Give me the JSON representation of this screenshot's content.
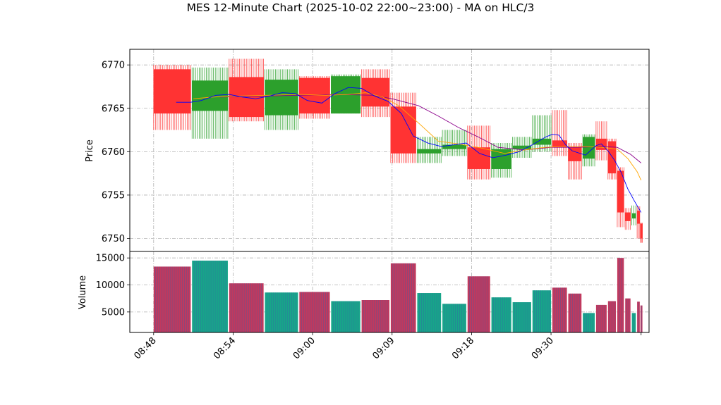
{
  "chart_data": {
    "type": "candlestick-volume",
    "title": "MES 12-Minute Chart (2025-10-02 22:00~23:00) - MA on HLC/3",
    "price_panel": {
      "ylabel": "Price",
      "ylim": [
        6748.5,
        6771.8
      ],
      "yticks": [
        6750,
        6755,
        6760,
        6765,
        6770
      ]
    },
    "volume_panel": {
      "ylabel": "Volume",
      "ylim": [
        1200,
        16200
      ],
      "yticks": [
        5000,
        10000,
        15000
      ]
    },
    "x_ticks": [
      {
        "label": "08:48",
        "x": 0
      },
      {
        "label": "08:54",
        "x": 6
      },
      {
        "label": "09:00",
        "x": 12
      },
      {
        "label": "09:09",
        "x": 18
      },
      {
        "label": "09:18",
        "x": 24
      },
      {
        "label": "09:30",
        "x": 30
      }
    ],
    "xlim": [
      -1.8,
      37.4
    ],
    "grid": true,
    "colors": {
      "up": "#2ca02c",
      "down": "#ff3333",
      "vol_up": "#17a589",
      "vol_down": "#c0395e",
      "ma_fast": "#0000ff",
      "ma_mid": "#ffa500",
      "ma_slow": "#8b008b"
    },
    "bars": [
      {
        "x0": 0.0,
        "x1": 2.8,
        "open": 6769.5,
        "close": 6764.4,
        "high": 6770.0,
        "low": 6762.5,
        "volume": 13400
      },
      {
        "x0": 2.9,
        "x1": 5.6,
        "open": 6764.7,
        "close": 6768.2,
        "high": 6769.7,
        "low": 6761.5,
        "volume": 14500
      },
      {
        "x0": 5.7,
        "x1": 8.3,
        "open": 6768.6,
        "close": 6764.0,
        "high": 6770.7,
        "low": 6763.5,
        "volume": 10300
      },
      {
        "x0": 8.4,
        "x1": 10.9,
        "open": 6764.2,
        "close": 6768.3,
        "high": 6769.5,
        "low": 6762.5,
        "volume": 8600
      },
      {
        "x0": 11.0,
        "x1": 13.3,
        "open": 6768.5,
        "close": 6764.4,
        "high": 6768.7,
        "low": 6763.8,
        "volume": 8700
      },
      {
        "x0": 13.4,
        "x1": 15.6,
        "open": 6764.4,
        "close": 6768.7,
        "high": 6768.9,
        "low": 6764.4,
        "volume": 7000
      },
      {
        "x0": 15.7,
        "x1": 17.8,
        "open": 6768.5,
        "close": 6765.2,
        "high": 6769.5,
        "low": 6764.0,
        "volume": 7200
      },
      {
        "x0": 17.9,
        "x1": 19.8,
        "open": 6765.2,
        "close": 6759.8,
        "high": 6766.8,
        "low": 6758.7,
        "volume": 14000
      },
      {
        "x0": 19.9,
        "x1": 21.7,
        "open": 6759.8,
        "close": 6760.3,
        "high": 6761.7,
        "low": 6758.7,
        "volume": 8500
      },
      {
        "x0": 21.8,
        "x1": 23.6,
        "open": 6760.3,
        "close": 6760.8,
        "high": 6762.5,
        "low": 6759.5,
        "volume": 6500
      },
      {
        "x0": 23.7,
        "x1": 25.4,
        "open": 6760.5,
        "close": 6758.0,
        "high": 6763.0,
        "low": 6756.8,
        "volume": 11600
      },
      {
        "x0": 25.5,
        "x1": 27.0,
        "open": 6758.0,
        "close": 6760.3,
        "high": 6761.0,
        "low": 6757.0,
        "volume": 7700
      },
      {
        "x0": 27.1,
        "x1": 28.5,
        "open": 6760.3,
        "close": 6760.7,
        "high": 6761.7,
        "low": 6759.3,
        "volume": 6800
      },
      {
        "x0": 28.6,
        "x1": 30.0,
        "open": 6760.8,
        "close": 6761.5,
        "high": 6764.2,
        "low": 6760.0,
        "volume": 9000
      },
      {
        "x0": 30.1,
        "x1": 31.2,
        "open": 6761.3,
        "close": 6760.5,
        "high": 6764.8,
        "low": 6759.5,
        "volume": 9500
      },
      {
        "x0": 31.3,
        "x1": 32.3,
        "open": 6760.5,
        "close": 6758.9,
        "high": 6761.0,
        "low": 6756.8,
        "volume": 8400
      },
      {
        "x0": 32.4,
        "x1": 33.3,
        "open": 6759.2,
        "close": 6761.7,
        "high": 6762.0,
        "low": 6758.3,
        "volume": 4800
      },
      {
        "x0": 33.4,
        "x1": 34.2,
        "open": 6761.5,
        "close": 6760.2,
        "high": 6763.5,
        "low": 6759.0,
        "volume": 6300
      },
      {
        "x0": 34.3,
        "x1": 34.9,
        "open": 6761.2,
        "close": 6757.5,
        "high": 6761.5,
        "low": 6756.8,
        "volume": 7000
      },
      {
        "x0": 35.0,
        "x1": 35.5,
        "open": 6757.8,
        "close": 6753.0,
        "high": 6758.2,
        "low": 6751.3,
        "volume": 15000
      },
      {
        "x0": 35.6,
        "x1": 36.0,
        "open": 6753.0,
        "close": 6752.0,
        "high": 6753.5,
        "low": 6751.0,
        "volume": 7500
      },
      {
        "x0": 36.1,
        "x1": 36.4,
        "open": 6752.3,
        "close": 6752.9,
        "high": 6753.8,
        "low": 6751.5,
        "volume": 4800
      },
      {
        "x0": 36.5,
        "x1": 36.7,
        "open": 6753.2,
        "close": 6751.7,
        "high": 6753.7,
        "low": 6750.0,
        "volume": 6900
      },
      {
        "x0": 36.75,
        "x1": 36.9,
        "open": 6751.7,
        "close": 6750.0,
        "high": 6751.8,
        "low": 6749.5,
        "volume": 6200
      }
    ],
    "ma_fast": [
      [
        1.7,
        6765.7
      ],
      [
        2.8,
        6765.7
      ],
      [
        3.6,
        6765.9
      ],
      [
        4.7,
        6766.5
      ],
      [
        5.7,
        6766.6
      ],
      [
        6.7,
        6766.3
      ],
      [
        7.7,
        6766.1
      ],
      [
        8.7,
        6766.4
      ],
      [
        9.7,
        6766.8
      ],
      [
        10.7,
        6766.7
      ],
      [
        11.6,
        6765.9
      ],
      [
        12.7,
        6765.6
      ],
      [
        13.7,
        6766.7
      ],
      [
        14.7,
        6767.4
      ],
      [
        15.7,
        6767.3
      ],
      [
        16.7,
        6766.4
      ],
      [
        17.7,
        6765.8
      ],
      [
        18.7,
        6764.4
      ],
      [
        19.6,
        6761.8
      ],
      [
        20.7,
        6761.0
      ],
      [
        21.7,
        6760.6
      ],
      [
        22.7,
        6760.8
      ],
      [
        23.6,
        6761.0
      ],
      [
        24.6,
        6759.8
      ],
      [
        25.6,
        6759.3
      ],
      [
        26.6,
        6759.6
      ],
      [
        27.6,
        6760.0
      ],
      [
        28.6,
        6760.8
      ],
      [
        29.6,
        6761.7
      ],
      [
        30.1,
        6762.0
      ],
      [
        30.6,
        6761.9
      ],
      [
        31.1,
        6760.8
      ],
      [
        31.6,
        6760.1
      ],
      [
        32.6,
        6759.6
      ],
      [
        33.4,
        6760.7
      ],
      [
        33.8,
        6760.9
      ],
      [
        34.3,
        6760.1
      ],
      [
        34.8,
        6759.0
      ],
      [
        35.3,
        6757.6
      ],
      [
        35.8,
        6755.7
      ],
      [
        36.3,
        6754.3
      ],
      [
        36.8,
        6753.0
      ]
    ],
    "ma_mid": [
      [
        3.0,
        6766.1
      ],
      [
        4.5,
        6766.3
      ],
      [
        6.0,
        6766.4
      ],
      [
        8.5,
        6766.5
      ],
      [
        11.0,
        6766.6
      ],
      [
        13.0,
        6766.5
      ],
      [
        14.7,
        6766.6
      ],
      [
        16.0,
        6766.8
      ],
      [
        17.3,
        6766.3
      ],
      [
        18.5,
        6765.3
      ],
      [
        20.0,
        6763.3
      ],
      [
        21.5,
        6761.2
      ],
      [
        23.0,
        6760.9
      ],
      [
        24.5,
        6760.5
      ],
      [
        26.5,
        6759.8
      ],
      [
        28.0,
        6760.2
      ],
      [
        29.5,
        6760.5
      ],
      [
        31.0,
        6760.6
      ],
      [
        32.5,
        6760.6
      ],
      [
        33.8,
        6760.5
      ],
      [
        35.0,
        6760.3
      ],
      [
        35.8,
        6759.2
      ],
      [
        36.5,
        6757.7
      ],
      [
        36.8,
        6756.7
      ]
    ],
    "ma_slow": [
      [
        5.0,
        6766.3
      ],
      [
        8.0,
        6766.4
      ],
      [
        11.0,
        6766.5
      ],
      [
        14.0,
        6766.6
      ],
      [
        16.5,
        6766.5
      ],
      [
        18.0,
        6766.1
      ],
      [
        20.0,
        6765.3
      ],
      [
        21.5,
        6764.1
      ],
      [
        23.0,
        6762.8
      ],
      [
        24.5,
        6761.7
      ],
      [
        26.0,
        6760.5
      ],
      [
        28.0,
        6760.2
      ],
      [
        30.0,
        6760.5
      ],
      [
        32.0,
        6760.5
      ],
      [
        34.0,
        6760.6
      ],
      [
        35.0,
        6760.5
      ],
      [
        36.0,
        6759.7
      ],
      [
        36.8,
        6758.7
      ]
    ]
  }
}
